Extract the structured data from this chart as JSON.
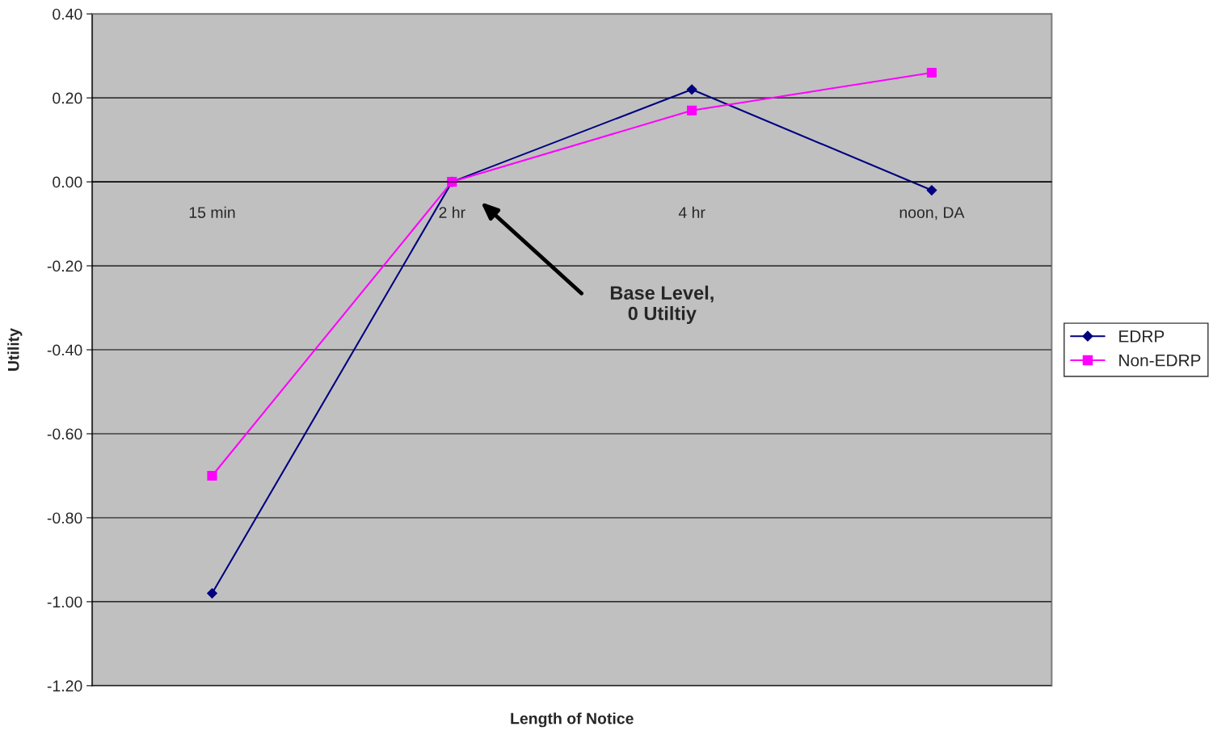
{
  "chart_data": {
    "type": "line",
    "xlabel": "Length of Notice",
    "ylabel": "Utility",
    "categories": [
      "15 min",
      "2 hr",
      "4 hr",
      "noon, DA"
    ],
    "series": [
      {
        "name": "EDRP",
        "color": "#000080",
        "marker": "diamond",
        "values": [
          -0.98,
          0.0,
          0.22,
          -0.02
        ]
      },
      {
        "name": "Non-EDRP",
        "color": "#ff00ff",
        "marker": "square",
        "values": [
          -0.7,
          0.0,
          0.17,
          0.26
        ]
      }
    ],
    "ylim": [
      -1.2,
      0.4
    ],
    "yticks": [
      {
        "value": -1.2,
        "label": "-1.20"
      },
      {
        "value": -1.0,
        "label": "-1.00"
      },
      {
        "value": -0.8,
        "label": "-0.80"
      },
      {
        "value": -0.6,
        "label": "-0.60"
      },
      {
        "value": -0.4,
        "label": "-0.40"
      },
      {
        "value": -0.2,
        "label": "-0.20"
      },
      {
        "value": 0.0,
        "label": "0.00"
      },
      {
        "value": 0.2,
        "label": "0.20"
      },
      {
        "value": 0.4,
        "label": "0.40"
      }
    ],
    "grid": "y",
    "legend": "right",
    "annotations": [
      "Base Level,\n0 Utiltiy"
    ]
  }
}
